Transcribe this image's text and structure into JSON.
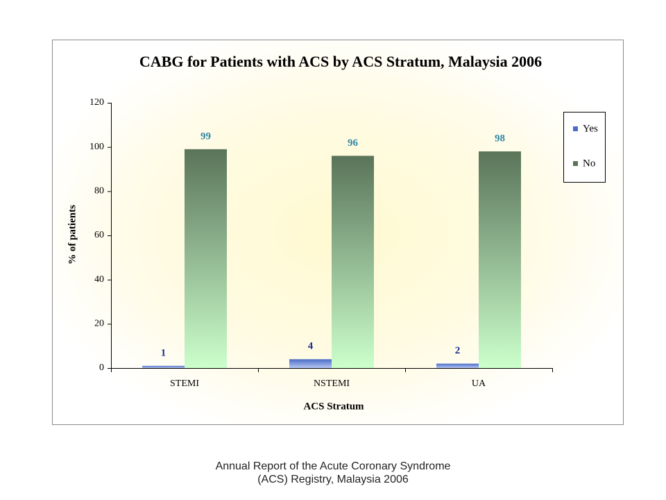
{
  "chart_data": {
    "type": "bar",
    "title": "CABG for Patients with ACS by ACS Stratum, Malaysia 2006",
    "x_label": "ACS Stratum",
    "y_label": "% of patients",
    "categories": [
      "STEMI",
      "NSTEMI",
      "UA"
    ],
    "series": [
      {
        "name": "Yes",
        "color": "#4a6cc8",
        "label_color": "#1c2f8f",
        "values": [
          1,
          4,
          2
        ]
      },
      {
        "name": "No",
        "color": "#5a745a",
        "label_color": "#2f86a6",
        "values": [
          99,
          96,
          98
        ]
      }
    ],
    "ylim": [
      0,
      120
    ],
    "yticks": [
      0,
      20,
      40,
      60,
      80,
      100,
      120
    ],
    "legend": "right"
  },
  "caption": "Annual Report of the Acute Coronary Syndrome (ACS) Registry, Malaysia 2006"
}
